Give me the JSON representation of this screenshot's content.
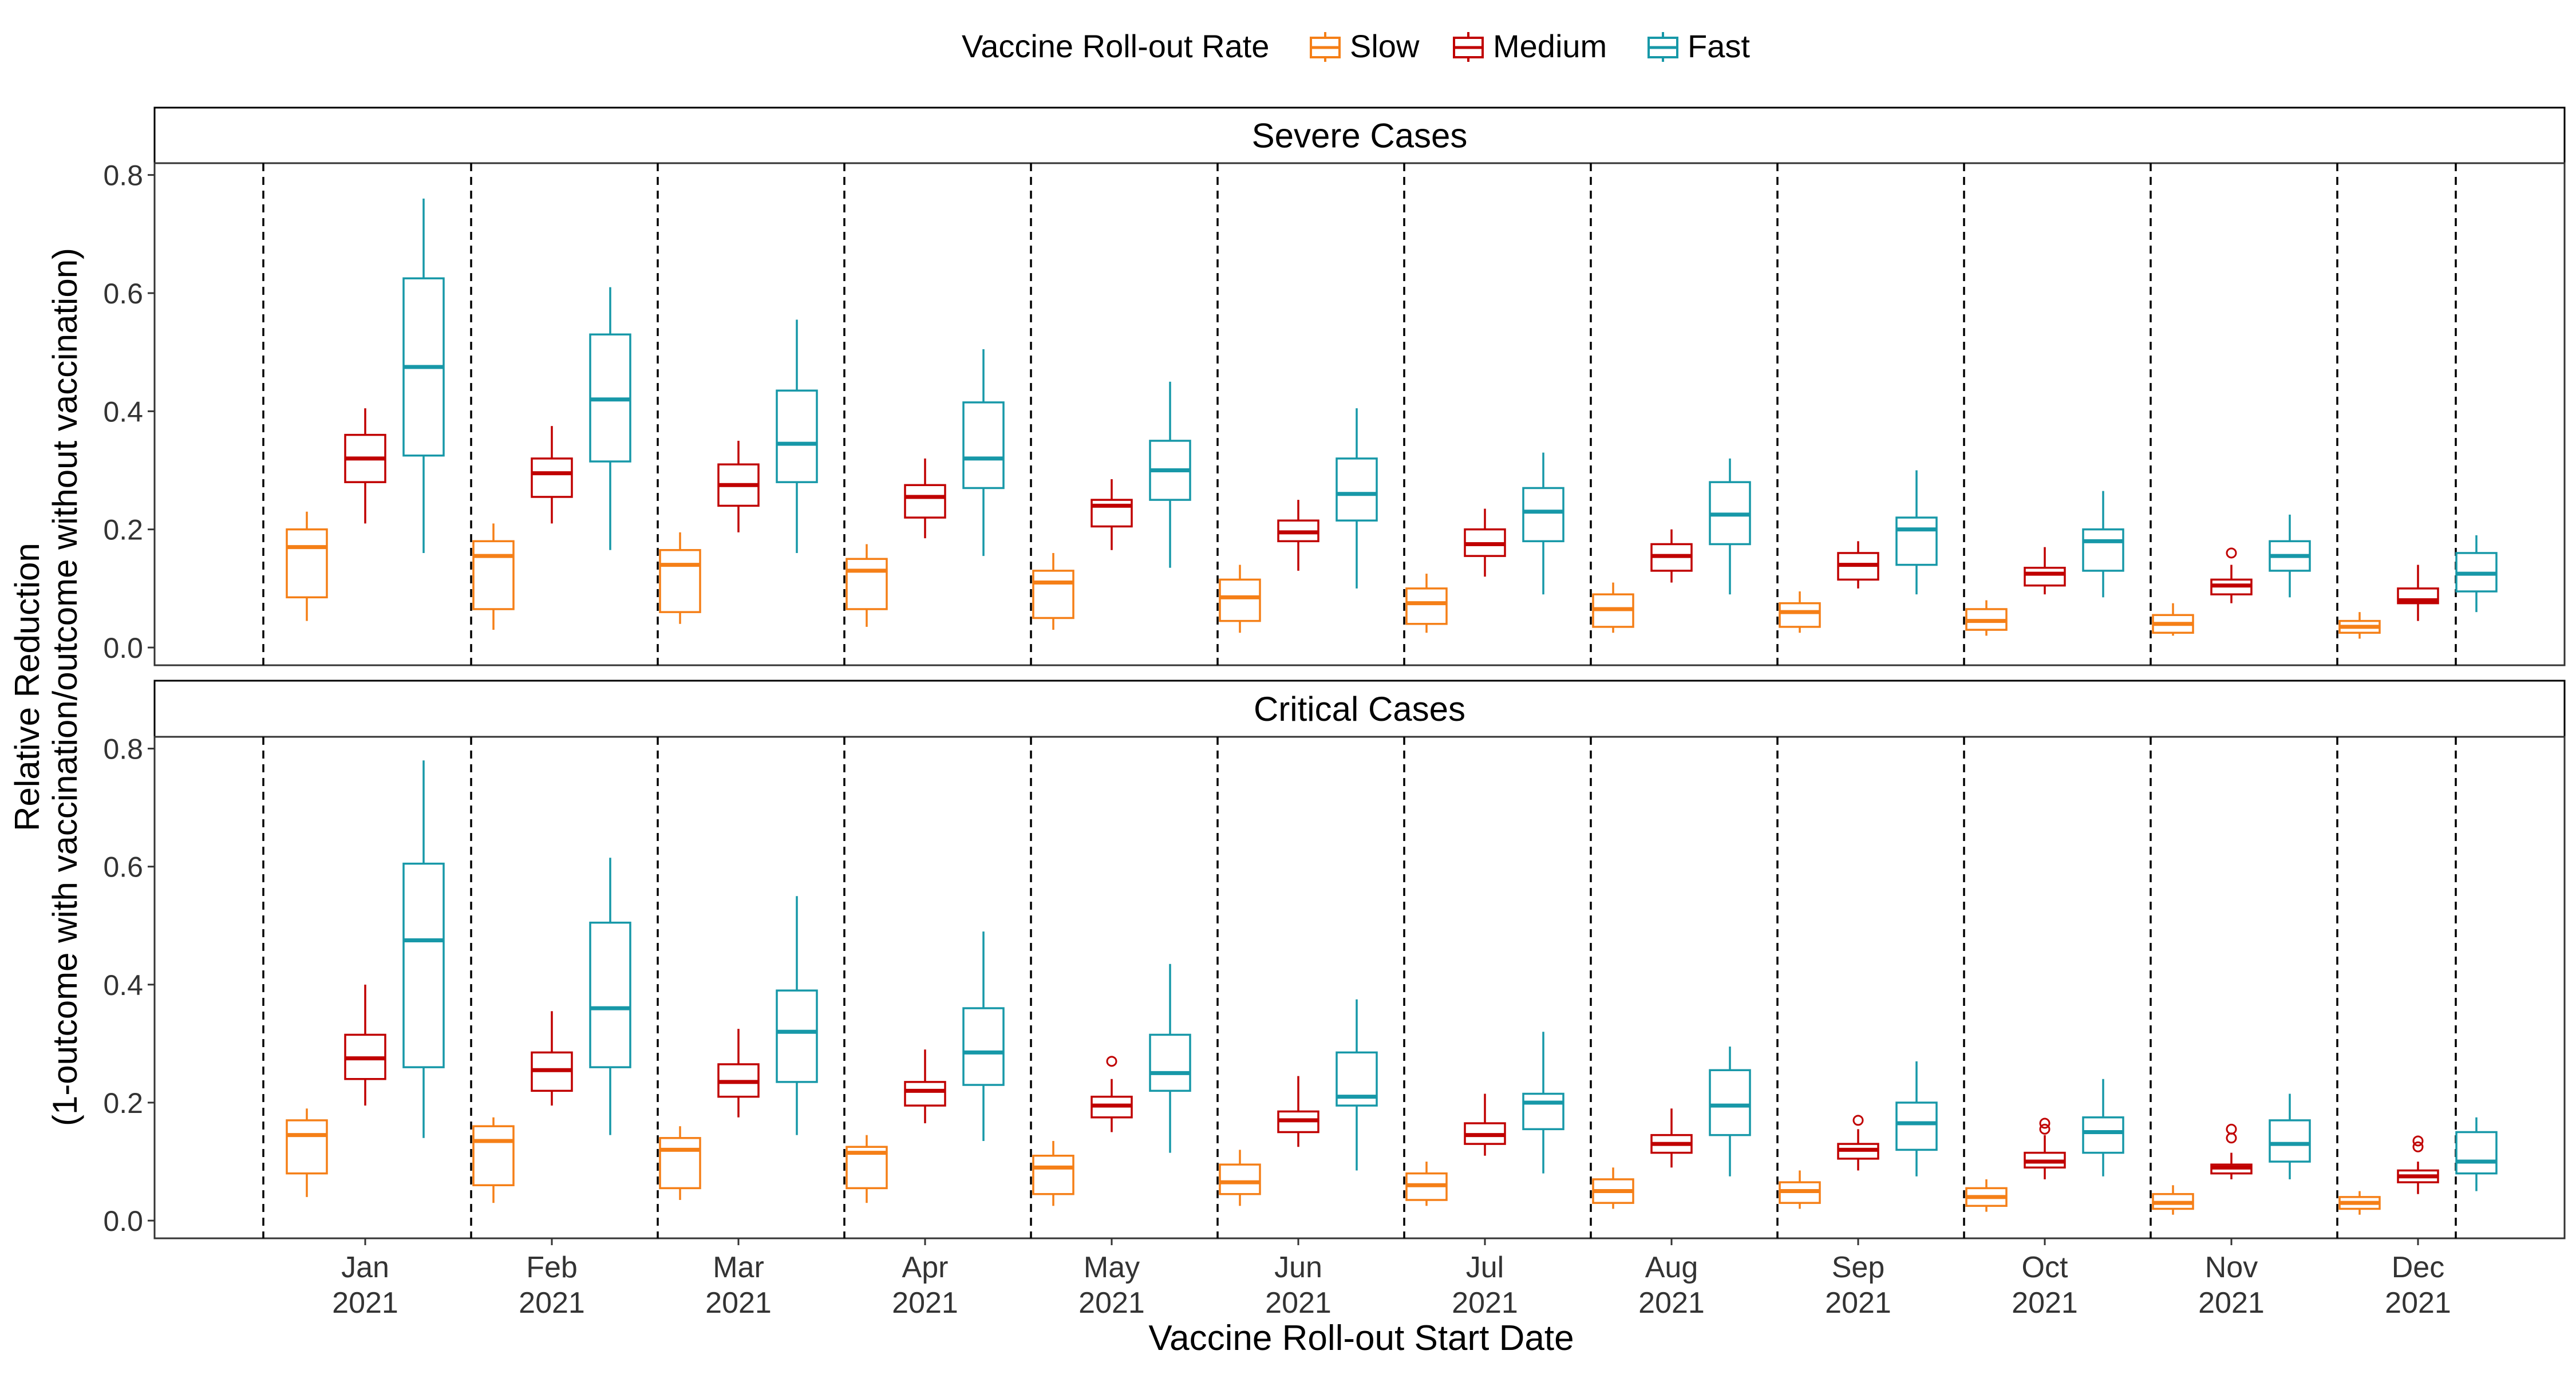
{
  "legend": {
    "title": "Vaccine Roll-out Rate",
    "items": [
      {
        "label": "Slow",
        "color": "#F57F17"
      },
      {
        "label": "Medium",
        "color": "#C00000"
      },
      {
        "label": "Fast",
        "color": "#1798A8"
      }
    ]
  },
  "xlabel": "Vaccine Roll-out Start Date",
  "ylabel_line1": "Relative Reduction",
  "ylabel_line2": "(1-outcome with vaccination/outcome without vaccination)",
  "chart_data": {
    "type": "boxplot",
    "categories": [
      {
        "month": "Jan",
        "year": "2021"
      },
      {
        "month": "Feb",
        "year": "2021"
      },
      {
        "month": "Mar",
        "year": "2021"
      },
      {
        "month": "Apr",
        "year": "2021"
      },
      {
        "month": "May",
        "year": "2021"
      },
      {
        "month": "Jun",
        "year": "2021"
      },
      {
        "month": "Jul",
        "year": "2021"
      },
      {
        "month": "Aug",
        "year": "2021"
      },
      {
        "month": "Sep",
        "year": "2021"
      },
      {
        "month": "Oct",
        "year": "2021"
      },
      {
        "month": "Nov",
        "year": "2021"
      },
      {
        "month": "Dec",
        "year": "2021"
      }
    ],
    "series_names": [
      "Slow",
      "Medium",
      "Fast"
    ],
    "ylim": [
      -0.03,
      0.82
    ],
    "yticks": [
      0.0,
      0.2,
      0.4,
      0.6,
      0.8
    ],
    "ytick_labels": [
      "0.0",
      "0.2",
      "0.4",
      "0.6",
      "0.8"
    ],
    "panels": [
      {
        "title": "Severe Cases",
        "boxes": [
          [
            [
              0.045,
              0.085,
              0.17,
              0.2,
              0.23
            ],
            [
              0.21,
              0.28,
              0.32,
              0.36,
              0.405
            ],
            [
              0.16,
              0.325,
              0.475,
              0.625,
              0.76
            ]
          ],
          [
            [
              0.03,
              0.065,
              0.155,
              0.18,
              0.21
            ],
            [
              0.21,
              0.255,
              0.295,
              0.32,
              0.375
            ],
            [
              0.165,
              0.315,
              0.42,
              0.53,
              0.61
            ]
          ],
          [
            [
              0.04,
              0.06,
              0.14,
              0.165,
              0.195
            ],
            [
              0.195,
              0.24,
              0.275,
              0.31,
              0.35
            ],
            [
              0.16,
              0.28,
              0.345,
              0.435,
              0.555
            ]
          ],
          [
            [
              0.035,
              0.065,
              0.13,
              0.15,
              0.175
            ],
            [
              0.185,
              0.22,
              0.255,
              0.275,
              0.32
            ],
            [
              0.155,
              0.27,
              0.32,
              0.415,
              0.505
            ]
          ],
          [
            [
              0.03,
              0.05,
              0.11,
              0.13,
              0.16
            ],
            [
              0.165,
              0.205,
              0.24,
              0.25,
              0.285
            ],
            [
              0.135,
              0.25,
              0.3,
              0.35,
              0.45
            ]
          ],
          [
            [
              0.025,
              0.045,
              0.085,
              0.115,
              0.14
            ],
            [
              0.13,
              0.18,
              0.195,
              0.215,
              0.25
            ],
            [
              0.1,
              0.215,
              0.26,
              0.32,
              0.405
            ]
          ],
          [
            [
              0.025,
              0.04,
              0.075,
              0.1,
              0.125
            ],
            [
              0.12,
              0.155,
              0.175,
              0.2,
              0.235
            ],
            [
              0.09,
              0.18,
              0.23,
              0.27,
              0.33
            ]
          ],
          [
            [
              0.025,
              0.035,
              0.065,
              0.09,
              0.11
            ],
            [
              0.11,
              0.13,
              0.155,
              0.175,
              0.2
            ],
            [
              0.09,
              0.175,
              0.225,
              0.28,
              0.32
            ]
          ],
          [
            [
              0.025,
              0.035,
              0.06,
              0.075,
              0.095
            ],
            [
              0.1,
              0.115,
              0.14,
              0.16,
              0.18
            ],
            [
              0.09,
              0.14,
              0.2,
              0.22,
              0.3
            ]
          ],
          [
            [
              0.02,
              0.03,
              0.045,
              0.065,
              0.08
            ],
            [
              0.09,
              0.105,
              0.125,
              0.135,
              0.17
            ],
            [
              0.085,
              0.13,
              0.18,
              0.2,
              0.265
            ]
          ],
          [
            [
              0.02,
              0.025,
              0.04,
              0.055,
              0.075
            ],
            [
              0.075,
              0.09,
              0.105,
              0.115,
              0.14
            ],
            [
              0.085,
              0.13,
              0.155,
              0.18,
              0.225
            ]
          ],
          [
            [
              0.015,
              0.025,
              0.035,
              0.045,
              0.06
            ],
            [
              0.045,
              0.075,
              0.08,
              0.1,
              0.14
            ],
            [
              0.06,
              0.095,
              0.125,
              0.16,
              0.19
            ]
          ]
        ],
        "outliers": [
          {
            "month_index": 10,
            "series": "Medium",
            "values": [
              0.16
            ]
          }
        ]
      },
      {
        "title": "Critical Cases",
        "boxes": [
          [
            [
              0.04,
              0.08,
              0.145,
              0.17,
              0.19
            ],
            [
              0.195,
              0.24,
              0.275,
              0.315,
              0.4
            ],
            [
              0.14,
              0.26,
              0.475,
              0.605,
              0.78
            ]
          ],
          [
            [
              0.03,
              0.06,
              0.135,
              0.16,
              0.175
            ],
            [
              0.195,
              0.22,
              0.255,
              0.285,
              0.355
            ],
            [
              0.145,
              0.26,
              0.36,
              0.505,
              0.615
            ]
          ],
          [
            [
              0.035,
              0.055,
              0.12,
              0.14,
              0.16
            ],
            [
              0.175,
              0.21,
              0.235,
              0.265,
              0.325
            ],
            [
              0.145,
              0.235,
              0.32,
              0.39,
              0.55
            ]
          ],
          [
            [
              0.03,
              0.055,
              0.115,
              0.125,
              0.145
            ],
            [
              0.165,
              0.195,
              0.22,
              0.235,
              0.29
            ],
            [
              0.135,
              0.23,
              0.285,
              0.36,
              0.49
            ]
          ],
          [
            [
              0.025,
              0.045,
              0.09,
              0.11,
              0.135
            ],
            [
              0.15,
              0.175,
              0.195,
              0.21,
              0.24
            ],
            [
              0.115,
              0.22,
              0.25,
              0.315,
              0.435
            ]
          ],
          [
            [
              0.025,
              0.045,
              0.065,
              0.095,
              0.12
            ],
            [
              0.125,
              0.15,
              0.17,
              0.185,
              0.245
            ],
            [
              0.085,
              0.195,
              0.21,
              0.285,
              0.375
            ]
          ],
          [
            [
              0.025,
              0.035,
              0.06,
              0.08,
              0.1
            ],
            [
              0.11,
              0.13,
              0.145,
              0.165,
              0.215
            ],
            [
              0.08,
              0.155,
              0.2,
              0.215,
              0.32
            ]
          ],
          [
            [
              0.02,
              0.03,
              0.05,
              0.07,
              0.09
            ],
            [
              0.09,
              0.115,
              0.13,
              0.145,
              0.19
            ],
            [
              0.075,
              0.145,
              0.195,
              0.255,
              0.295
            ]
          ],
          [
            [
              0.02,
              0.03,
              0.05,
              0.065,
              0.085
            ],
            [
              0.085,
              0.105,
              0.12,
              0.13,
              0.155
            ],
            [
              0.075,
              0.12,
              0.165,
              0.2,
              0.27
            ]
          ],
          [
            [
              0.015,
              0.025,
              0.04,
              0.055,
              0.07
            ],
            [
              0.07,
              0.09,
              0.1,
              0.115,
              0.145
            ],
            [
              0.075,
              0.115,
              0.15,
              0.175,
              0.24
            ]
          ],
          [
            [
              0.01,
              0.02,
              0.03,
              0.045,
              0.06
            ],
            [
              0.07,
              0.08,
              0.09,
              0.095,
              0.115
            ],
            [
              0.07,
              0.1,
              0.13,
              0.17,
              0.215
            ]
          ],
          [
            [
              0.01,
              0.02,
              0.03,
              0.04,
              0.05
            ],
            [
              0.045,
              0.065,
              0.075,
              0.085,
              0.1
            ],
            [
              0.05,
              0.08,
              0.1,
              0.15,
              0.175
            ]
          ]
        ],
        "outliers": [
          {
            "month_index": 4,
            "series": "Medium",
            "values": [
              0.27
            ]
          },
          {
            "month_index": 8,
            "series": "Medium",
            "values": [
              0.17
            ]
          },
          {
            "month_index": 9,
            "series": "Medium",
            "values": [
              0.155,
              0.165
            ]
          },
          {
            "month_index": 10,
            "series": "Medium",
            "values": [
              0.14,
              0.155
            ]
          },
          {
            "month_index": 11,
            "series": "Medium",
            "values": [
              0.125,
              0.135
            ]
          }
        ]
      }
    ]
  }
}
